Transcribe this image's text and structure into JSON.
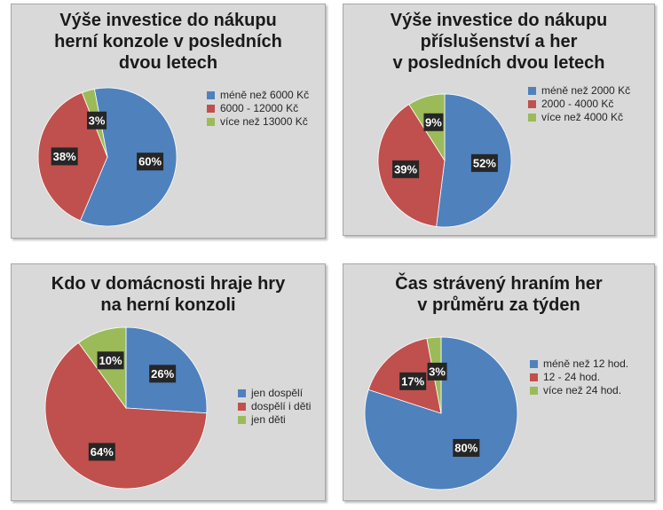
{
  "colors": {
    "blue": "#4f81bd",
    "red": "#c0504d",
    "green": "#9bbb59",
    "label_bg": "#262626",
    "label_text": "#ffffff"
  },
  "chart_data": [
    {
      "type": "pie",
      "title": [
        "Výše investice do nákupu",
        "herní konzole v posledních",
        "dvou letech"
      ],
      "categories": [
        "méně než 6000 Kč",
        "6000 - 12000 Kč",
        "více než 13000 Kč"
      ],
      "values": [
        60,
        38,
        3
      ],
      "labels": [
        "60%",
        "38%",
        "3%"
      ],
      "legend": "right",
      "unit": "%"
    },
    {
      "type": "pie",
      "title": [
        "Výše investice do nákupu",
        "příslušenství a her",
        "v posledních dvou letech"
      ],
      "categories": [
        "méně než 2000 Kč",
        "2000 - 4000 Kč",
        "více než 4000 Kč"
      ],
      "values": [
        52,
        39,
        9
      ],
      "labels": [
        "52%",
        "39%",
        "9%"
      ],
      "legend": "right",
      "unit": "%"
    },
    {
      "type": "pie",
      "title": [
        "Kdo v domácnosti hraje hry",
        "na herní konzoli"
      ],
      "categories": [
        "jen dospělí",
        "dospělí i děti",
        "jen děti"
      ],
      "values": [
        26,
        64,
        10
      ],
      "labels": [
        "26%",
        "64%",
        "10%"
      ],
      "legend": "right",
      "unit": "%"
    },
    {
      "type": "pie",
      "title": [
        "Čas strávený hraním her",
        "v průměru za týden"
      ],
      "categories": [
        "méně než 12 hod.",
        "12 - 24 hod.",
        "více než 24 hod."
      ],
      "values": [
        80,
        17,
        3
      ],
      "labels": [
        "80%",
        "17%",
        "3%"
      ],
      "legend": "right",
      "unit": "%"
    }
  ]
}
